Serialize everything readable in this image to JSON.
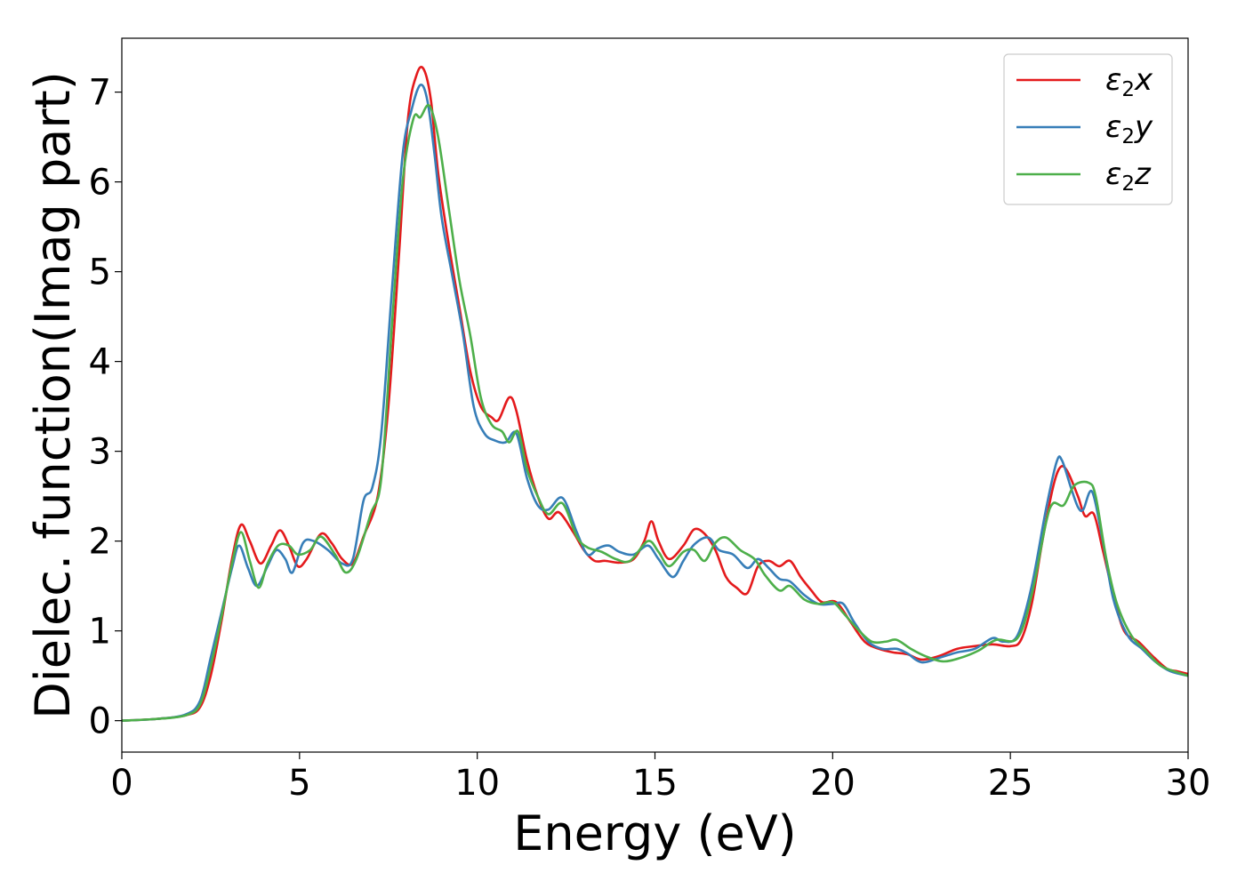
{
  "chart_data": {
    "type": "line",
    "xlabel": "Energy (eV)",
    "ylabel": "Dielec. function(Imag part)",
    "xlim": [
      0,
      30
    ],
    "ylim": [
      -0.35,
      7.6
    ],
    "xticks": [
      0,
      5,
      10,
      15,
      20,
      25,
      30
    ],
    "yticks": [
      0,
      1,
      2,
      3,
      4,
      5,
      6,
      7
    ],
    "grid": false,
    "legend_position": "top-right",
    "series": [
      {
        "name": "ε₂x",
        "legend_base": "ε",
        "legend_sub": "2",
        "legend_var": "x",
        "color": "#e41a1c",
        "points": [
          [
            0,
            0
          ],
          [
            1,
            0.02
          ],
          [
            1.8,
            0.06
          ],
          [
            2.2,
            0.15
          ],
          [
            2.5,
            0.5
          ],
          [
            2.8,
            1.1
          ],
          [
            3.1,
            1.8
          ],
          [
            3.35,
            2.18
          ],
          [
            3.6,
            2.0
          ],
          [
            3.9,
            1.75
          ],
          [
            4.2,
            1.95
          ],
          [
            4.45,
            2.12
          ],
          [
            4.7,
            1.95
          ],
          [
            4.95,
            1.72
          ],
          [
            5.2,
            1.8
          ],
          [
            5.6,
            2.08
          ],
          [
            5.9,
            1.98
          ],
          [
            6.2,
            1.8
          ],
          [
            6.5,
            1.75
          ],
          [
            6.8,
            2.05
          ],
          [
            7.2,
            2.5
          ],
          [
            7.5,
            3.5
          ],
          [
            7.8,
            5.2
          ],
          [
            8.05,
            6.7
          ],
          [
            8.3,
            7.2
          ],
          [
            8.5,
            7.25
          ],
          [
            8.7,
            6.9
          ],
          [
            8.9,
            6.1
          ],
          [
            9.2,
            5.3
          ],
          [
            9.5,
            4.6
          ],
          [
            9.8,
            3.9
          ],
          [
            10.1,
            3.5
          ],
          [
            10.4,
            3.38
          ],
          [
            10.6,
            3.35
          ],
          [
            10.9,
            3.6
          ],
          [
            11.1,
            3.45
          ],
          [
            11.4,
            2.9
          ],
          [
            11.7,
            2.5
          ],
          [
            12.0,
            2.25
          ],
          [
            12.3,
            2.32
          ],
          [
            12.7,
            2.1
          ],
          [
            13.0,
            1.9
          ],
          [
            13.3,
            1.78
          ],
          [
            13.6,
            1.78
          ],
          [
            14.0,
            1.76
          ],
          [
            14.4,
            1.8
          ],
          [
            14.7,
            2.0
          ],
          [
            14.9,
            2.22
          ],
          [
            15.1,
            2.0
          ],
          [
            15.4,
            1.8
          ],
          [
            15.8,
            1.95
          ],
          [
            16.1,
            2.13
          ],
          [
            16.4,
            2.08
          ],
          [
            16.7,
            1.9
          ],
          [
            17.0,
            1.6
          ],
          [
            17.3,
            1.48
          ],
          [
            17.6,
            1.42
          ],
          [
            17.9,
            1.72
          ],
          [
            18.2,
            1.78
          ],
          [
            18.5,
            1.72
          ],
          [
            18.8,
            1.78
          ],
          [
            19.1,
            1.6
          ],
          [
            19.4,
            1.45
          ],
          [
            19.7,
            1.32
          ],
          [
            20.1,
            1.32
          ],
          [
            20.5,
            1.1
          ],
          [
            20.9,
            0.88
          ],
          [
            21.3,
            0.8
          ],
          [
            21.7,
            0.76
          ],
          [
            22.1,
            0.74
          ],
          [
            22.5,
            0.68
          ],
          [
            23.0,
            0.72
          ],
          [
            23.5,
            0.8
          ],
          [
            24.0,
            0.83
          ],
          [
            24.5,
            0.85
          ],
          [
            25.0,
            0.83
          ],
          [
            25.3,
            0.9
          ],
          [
            25.6,
            1.3
          ],
          [
            25.9,
            2.0
          ],
          [
            26.2,
            2.6
          ],
          [
            26.4,
            2.82
          ],
          [
            26.6,
            2.78
          ],
          [
            26.9,
            2.5
          ],
          [
            27.1,
            2.28
          ],
          [
            27.35,
            2.3
          ],
          [
            27.6,
            1.9
          ],
          [
            27.9,
            1.4
          ],
          [
            28.2,
            1.0
          ],
          [
            28.6,
            0.88
          ],
          [
            29.0,
            0.72
          ],
          [
            29.4,
            0.58
          ],
          [
            29.7,
            0.55
          ],
          [
            30.0,
            0.52
          ]
        ]
      },
      {
        "name": "ε₂y",
        "legend_base": "ε",
        "legend_sub": "2",
        "legend_var": "y",
        "color": "#377eb8",
        "points": [
          [
            0,
            0
          ],
          [
            1,
            0.02
          ],
          [
            1.8,
            0.07
          ],
          [
            2.2,
            0.22
          ],
          [
            2.5,
            0.7
          ],
          [
            2.8,
            1.2
          ],
          [
            3.1,
            1.7
          ],
          [
            3.3,
            1.95
          ],
          [
            3.55,
            1.7
          ],
          [
            3.8,
            1.5
          ],
          [
            4.1,
            1.72
          ],
          [
            4.35,
            1.9
          ],
          [
            4.6,
            1.8
          ],
          [
            4.8,
            1.65
          ],
          [
            5.1,
            1.98
          ],
          [
            5.4,
            2.0
          ],
          [
            5.8,
            1.9
          ],
          [
            6.2,
            1.75
          ],
          [
            6.5,
            1.8
          ],
          [
            6.8,
            2.45
          ],
          [
            7.05,
            2.6
          ],
          [
            7.3,
            3.2
          ],
          [
            7.6,
            4.8
          ],
          [
            7.9,
            6.3
          ],
          [
            8.15,
            6.8
          ],
          [
            8.4,
            7.08
          ],
          [
            8.6,
            6.9
          ],
          [
            8.8,
            6.3
          ],
          [
            9.0,
            5.6
          ],
          [
            9.3,
            4.95
          ],
          [
            9.6,
            4.3
          ],
          [
            9.9,
            3.5
          ],
          [
            10.2,
            3.2
          ],
          [
            10.5,
            3.12
          ],
          [
            10.8,
            3.1
          ],
          [
            11.1,
            3.2
          ],
          [
            11.4,
            2.7
          ],
          [
            11.7,
            2.4
          ],
          [
            12.0,
            2.35
          ],
          [
            12.4,
            2.48
          ],
          [
            12.8,
            2.1
          ],
          [
            13.1,
            1.85
          ],
          [
            13.4,
            1.92
          ],
          [
            13.7,
            1.95
          ],
          [
            14.0,
            1.88
          ],
          [
            14.4,
            1.85
          ],
          [
            14.8,
            1.95
          ],
          [
            15.1,
            1.8
          ],
          [
            15.5,
            1.6
          ],
          [
            15.8,
            1.78
          ],
          [
            16.1,
            1.96
          ],
          [
            16.5,
            2.04
          ],
          [
            16.8,
            1.9
          ],
          [
            17.2,
            1.85
          ],
          [
            17.6,
            1.7
          ],
          [
            17.9,
            1.8
          ],
          [
            18.2,
            1.7
          ],
          [
            18.5,
            1.58
          ],
          [
            18.8,
            1.55
          ],
          [
            19.2,
            1.4
          ],
          [
            19.6,
            1.3
          ],
          [
            20.0,
            1.3
          ],
          [
            20.3,
            1.3
          ],
          [
            20.6,
            1.1
          ],
          [
            21.0,
            0.88
          ],
          [
            21.4,
            0.8
          ],
          [
            21.8,
            0.8
          ],
          [
            22.1,
            0.75
          ],
          [
            22.5,
            0.65
          ],
          [
            23.0,
            0.7
          ],
          [
            23.5,
            0.76
          ],
          [
            24.0,
            0.8
          ],
          [
            24.5,
            0.92
          ],
          [
            24.8,
            0.88
          ],
          [
            25.2,
            0.95
          ],
          [
            25.6,
            1.5
          ],
          [
            26.0,
            2.35
          ],
          [
            26.3,
            2.88
          ],
          [
            26.45,
            2.9
          ],
          [
            26.7,
            2.6
          ],
          [
            26.9,
            2.38
          ],
          [
            27.05,
            2.35
          ],
          [
            27.3,
            2.55
          ],
          [
            27.6,
            2.0
          ],
          [
            27.9,
            1.35
          ],
          [
            28.3,
            0.95
          ],
          [
            28.7,
            0.8
          ],
          [
            29.1,
            0.65
          ],
          [
            29.5,
            0.55
          ],
          [
            30.0,
            0.5
          ]
        ]
      },
      {
        "name": "ε₂z",
        "legend_base": "ε",
        "legend_sub": "2",
        "legend_var": "z",
        "color": "#4daf4a",
        "points": [
          [
            0,
            0
          ],
          [
            1,
            0.02
          ],
          [
            1.8,
            0.06
          ],
          [
            2.2,
            0.18
          ],
          [
            2.5,
            0.6
          ],
          [
            2.8,
            1.15
          ],
          [
            3.1,
            1.75
          ],
          [
            3.35,
            2.1
          ],
          [
            3.6,
            1.78
          ],
          [
            3.85,
            1.48
          ],
          [
            4.1,
            1.75
          ],
          [
            4.4,
            1.95
          ],
          [
            4.7,
            1.95
          ],
          [
            4.95,
            1.85
          ],
          [
            5.3,
            1.9
          ],
          [
            5.6,
            2.05
          ],
          [
            6.0,
            1.85
          ],
          [
            6.3,
            1.65
          ],
          [
            6.6,
            1.8
          ],
          [
            7.0,
            2.3
          ],
          [
            7.3,
            2.7
          ],
          [
            7.6,
            4.4
          ],
          [
            7.9,
            6.0
          ],
          [
            8.2,
            6.7
          ],
          [
            8.4,
            6.72
          ],
          [
            8.65,
            6.85
          ],
          [
            8.9,
            6.5
          ],
          [
            9.2,
            5.7
          ],
          [
            9.5,
            4.9
          ],
          [
            9.8,
            4.3
          ],
          [
            10.1,
            3.6
          ],
          [
            10.4,
            3.3
          ],
          [
            10.7,
            3.22
          ],
          [
            10.9,
            3.1
          ],
          [
            11.15,
            3.22
          ],
          [
            11.4,
            2.8
          ],
          [
            11.7,
            2.5
          ],
          [
            12.0,
            2.3
          ],
          [
            12.4,
            2.42
          ],
          [
            12.8,
            2.05
          ],
          [
            13.1,
            1.93
          ],
          [
            13.5,
            1.88
          ],
          [
            13.9,
            1.8
          ],
          [
            14.3,
            1.78
          ],
          [
            14.8,
            2.0
          ],
          [
            15.1,
            1.88
          ],
          [
            15.4,
            1.72
          ],
          [
            15.8,
            1.88
          ],
          [
            16.1,
            1.9
          ],
          [
            16.4,
            1.78
          ],
          [
            16.7,
            1.98
          ],
          [
            17.0,
            2.04
          ],
          [
            17.4,
            1.9
          ],
          [
            17.8,
            1.8
          ],
          [
            18.1,
            1.62
          ],
          [
            18.5,
            1.45
          ],
          [
            18.8,
            1.5
          ],
          [
            19.2,
            1.35
          ],
          [
            19.6,
            1.3
          ],
          [
            20.0,
            1.32
          ],
          [
            20.3,
            1.2
          ],
          [
            20.7,
            1.02
          ],
          [
            21.1,
            0.88
          ],
          [
            21.5,
            0.88
          ],
          [
            21.8,
            0.9
          ],
          [
            22.2,
            0.8
          ],
          [
            22.6,
            0.72
          ],
          [
            23.1,
            0.66
          ],
          [
            23.6,
            0.7
          ],
          [
            24.1,
            0.78
          ],
          [
            24.6,
            0.9
          ],
          [
            25.2,
            0.92
          ],
          [
            25.6,
            1.4
          ],
          [
            26.0,
            2.2
          ],
          [
            26.2,
            2.42
          ],
          [
            26.5,
            2.4
          ],
          [
            26.8,
            2.62
          ],
          [
            27.2,
            2.65
          ],
          [
            27.4,
            2.5
          ],
          [
            27.7,
            1.8
          ],
          [
            28.0,
            1.3
          ],
          [
            28.4,
            0.95
          ],
          [
            28.8,
            0.78
          ],
          [
            29.2,
            0.62
          ],
          [
            29.6,
            0.55
          ],
          [
            30.0,
            0.5
          ]
        ]
      }
    ]
  }
}
